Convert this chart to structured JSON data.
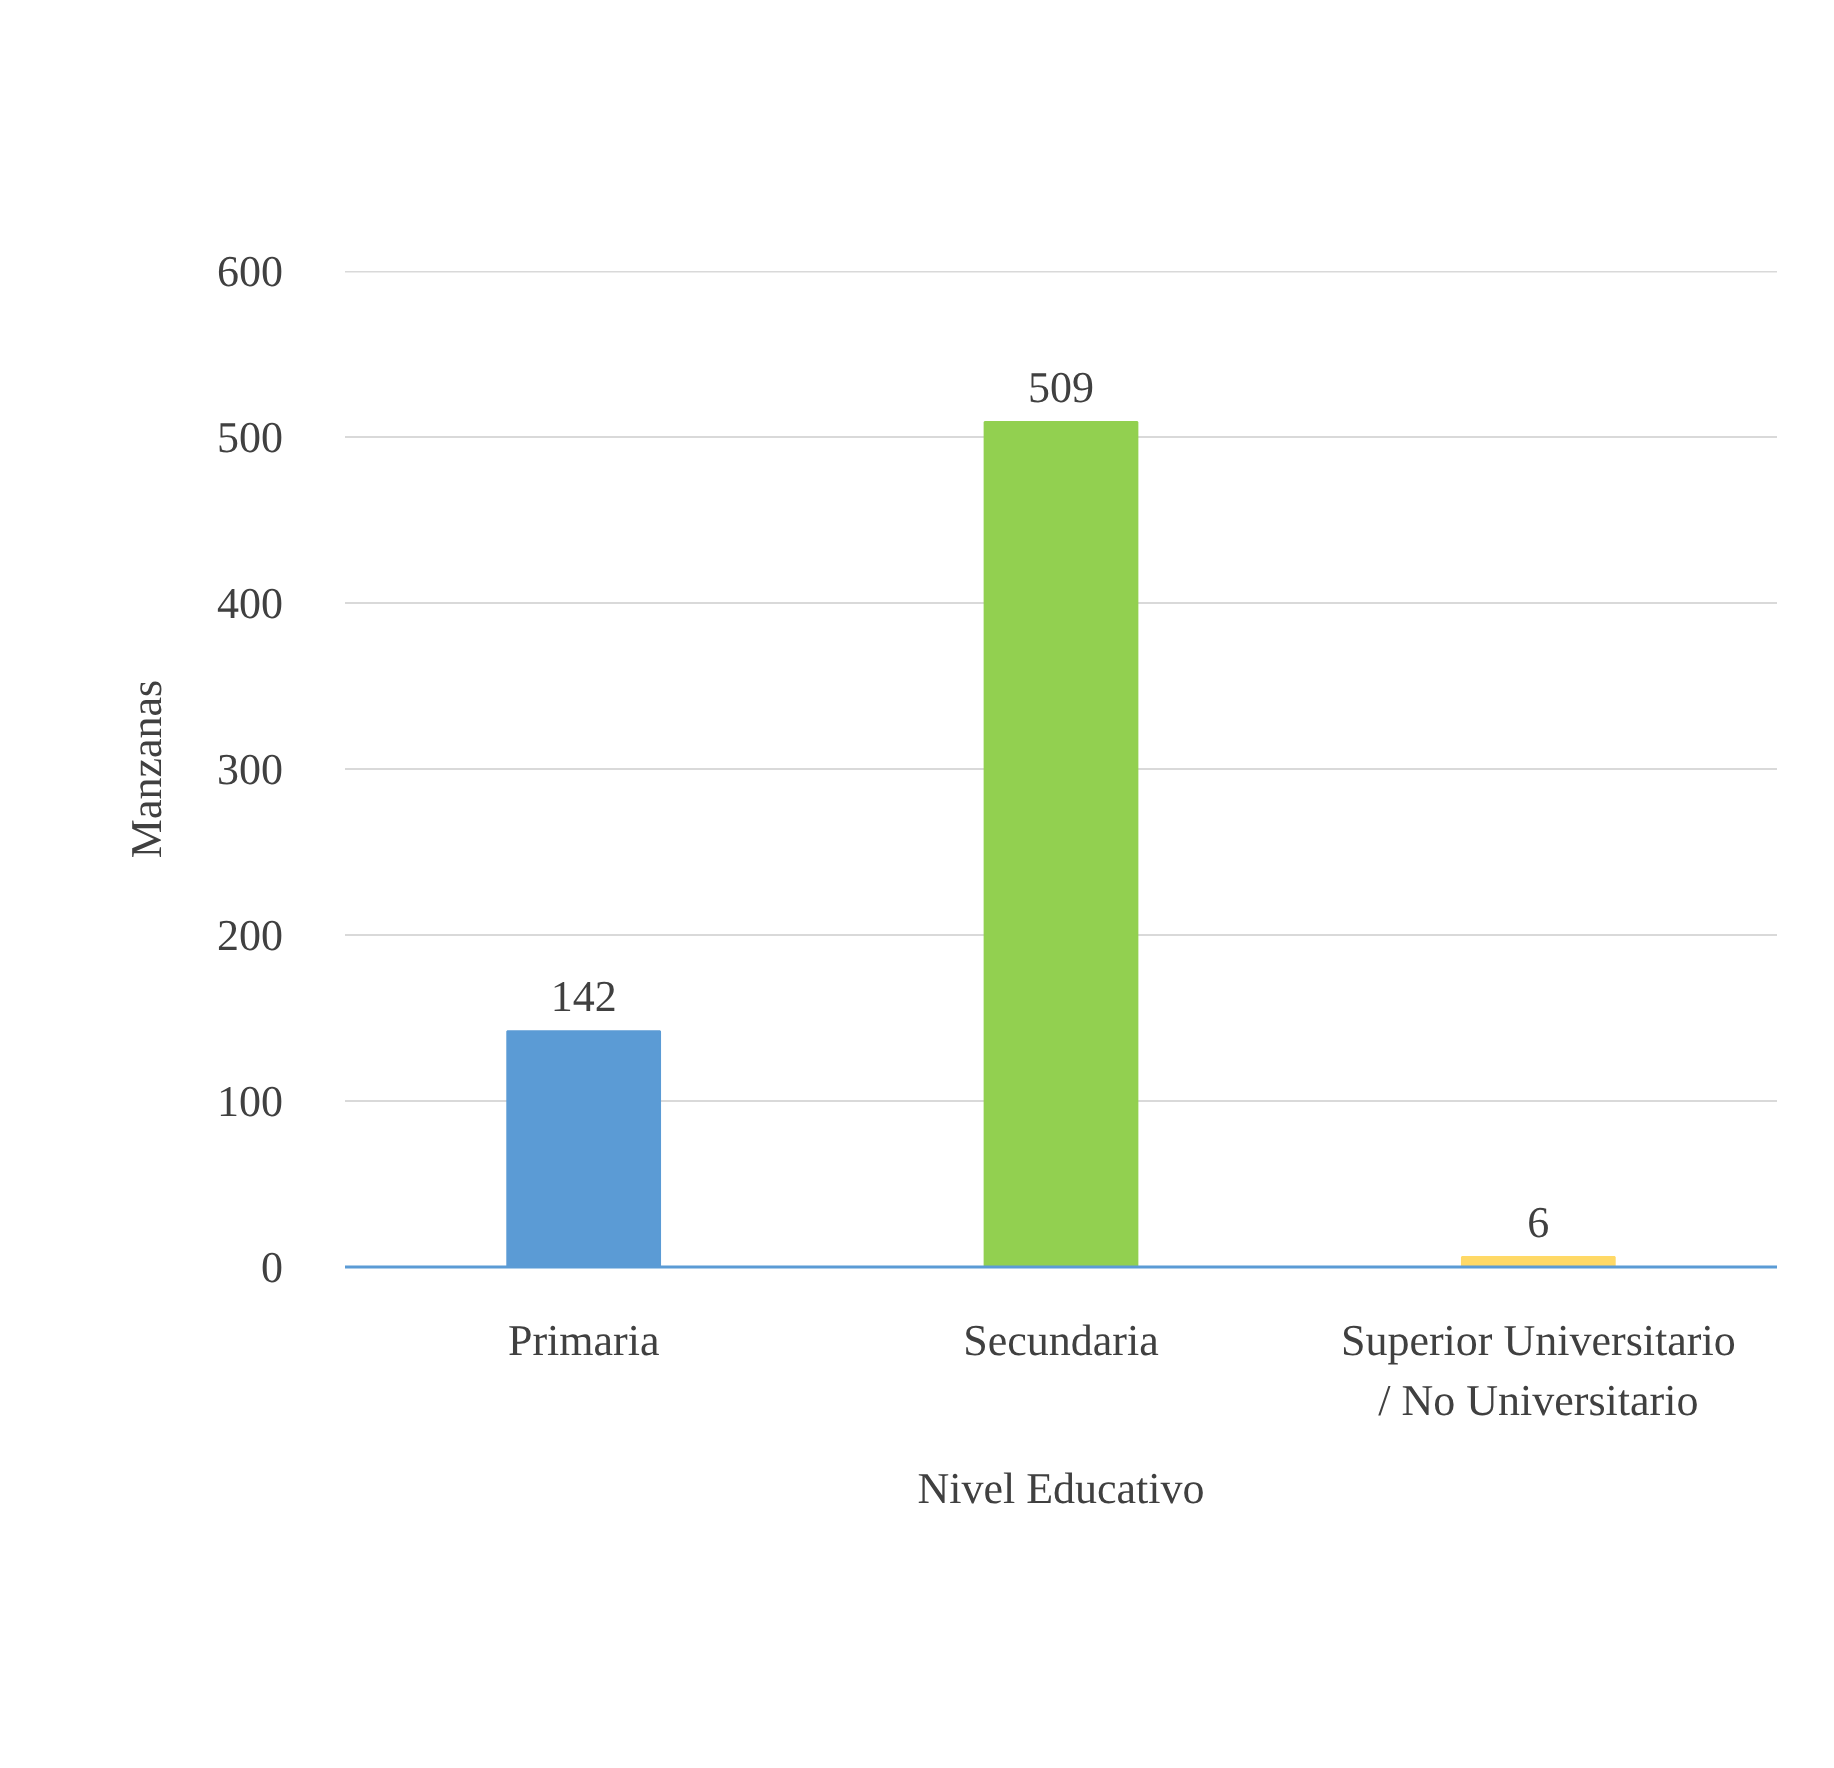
{
  "chart_data": {
    "type": "bar",
    "categories": [
      "Primaria",
      "Secundaria",
      "Superior Universitario / No Universitario"
    ],
    "values": [
      142,
      509,
      6
    ],
    "colors": [
      "#5b9bd5",
      "#92d050",
      "#ffd966"
    ],
    "xlabel": "Nivel Educativo",
    "ylabel": "Manzanas",
    "ylim": [
      0,
      600
    ],
    "yticks": [
      0,
      100,
      200,
      300,
      400,
      500,
      600
    ],
    "grid": "y",
    "data_labels": true
  }
}
